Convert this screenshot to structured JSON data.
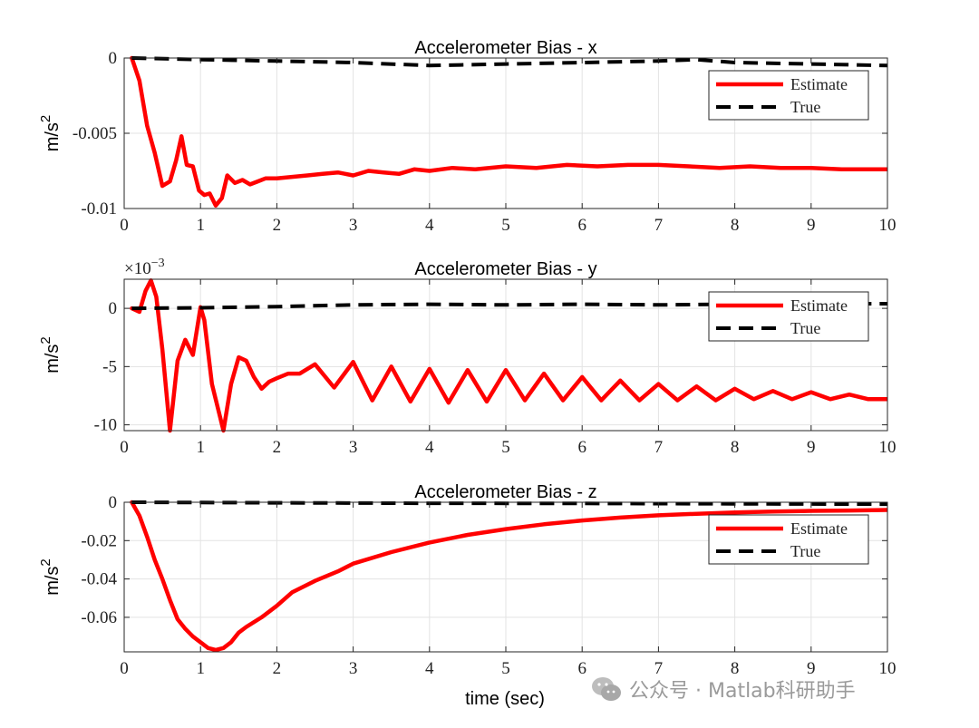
{
  "figure": {
    "xlabel": "time (sec)",
    "watermark": "公众号 · Matlab科研助手"
  },
  "chart_data": [
    {
      "type": "line",
      "title": "Accelerometer Bias - x",
      "xlabel": "",
      "ylabel": "m/s",
      "ylabel_superscript": "2",
      "xlim": [
        0,
        10
      ],
      "ylim": [
        -0.01,
        0
      ],
      "xticks": [
        0,
        1,
        2,
        3,
        4,
        5,
        6,
        7,
        8,
        9,
        10
      ],
      "yticks": [
        0,
        -0.005,
        -0.01
      ],
      "ytick_labels": [
        "0",
        "-0.005",
        "-0.01"
      ],
      "grid": true,
      "legend": {
        "position": "top-right",
        "entries": [
          "Estimate",
          "True"
        ]
      },
      "series": [
        {
          "name": "Estimate",
          "color": "#ff0000",
          "style": "solid",
          "x": [
            0.1,
            0.2,
            0.3,
            0.4,
            0.5,
            0.6,
            0.68,
            0.75,
            0.82,
            0.9,
            0.98,
            1.05,
            1.12,
            1.2,
            1.28,
            1.35,
            1.45,
            1.55,
            1.65,
            1.75,
            1.85,
            2.0,
            2.2,
            2.4,
            2.6,
            2.8,
            3.0,
            3.2,
            3.4,
            3.6,
            3.8,
            4.0,
            4.3,
            4.6,
            5.0,
            5.4,
            5.8,
            6.2,
            6.6,
            7.0,
            7.4,
            7.8,
            8.2,
            8.6,
            9.0,
            9.4,
            9.7,
            10.0
          ],
          "y": [
            0.0,
            -0.0015,
            -0.0045,
            -0.0063,
            -0.0085,
            -0.0082,
            -0.0068,
            -0.0052,
            -0.0071,
            -0.0072,
            -0.0088,
            -0.0091,
            -0.009,
            -0.0098,
            -0.0093,
            -0.0078,
            -0.0083,
            -0.0081,
            -0.0084,
            -0.0082,
            -0.008,
            -0.008,
            -0.0079,
            -0.0078,
            -0.0077,
            -0.0076,
            -0.0078,
            -0.0075,
            -0.0076,
            -0.0077,
            -0.0074,
            -0.0075,
            -0.0073,
            -0.0074,
            -0.0072,
            -0.0073,
            -0.0071,
            -0.0072,
            -0.0071,
            -0.0071,
            -0.0072,
            -0.0073,
            -0.0072,
            -0.0073,
            -0.0073,
            -0.0074,
            -0.0074,
            -0.0074
          ]
        },
        {
          "name": "True",
          "color": "#000000",
          "style": "dashed",
          "x": [
            0.1,
            1.0,
            2.0,
            3.0,
            4.0,
            5.0,
            6.0,
            7.0,
            7.5,
            8.0,
            9.0,
            10.0
          ],
          "y": [
            0.0,
            -0.0001,
            -0.0002,
            -0.0003,
            -0.0005,
            -0.0004,
            -0.0003,
            -0.0002,
            -0.0001,
            -0.0003,
            -0.0004,
            -0.0005
          ]
        }
      ]
    },
    {
      "type": "line",
      "title": "Accelerometer Bias - y",
      "xlabel": "",
      "ylabel": "m/s",
      "ylabel_superscript": "2",
      "y_multiplier": "×10",
      "y_multiplier_exp": "−3",
      "xlim": [
        0,
        10
      ],
      "ylim": [
        -10.5,
        2.5
      ],
      "xticks": [
        0,
        1,
        2,
        3,
        4,
        5,
        6,
        7,
        8,
        9,
        10
      ],
      "yticks": [
        0,
        -5,
        -10
      ],
      "ytick_labels": [
        "0",
        "-5",
        "-10"
      ],
      "grid": true,
      "legend": {
        "position": "top-right",
        "entries": [
          "Estimate",
          "True"
        ]
      },
      "series": [
        {
          "name": "Estimate",
          "color": "#ff0000",
          "style": "solid",
          "x": [
            0.1,
            0.2,
            0.28,
            0.35,
            0.42,
            0.5,
            0.6,
            0.7,
            0.8,
            0.9,
            1.0,
            1.05,
            1.15,
            1.3,
            1.4,
            1.5,
            1.6,
            1.7,
            1.8,
            1.9,
            2.0,
            2.15,
            2.3,
            2.5,
            2.75,
            3.0,
            3.25,
            3.5,
            3.75,
            4.0,
            4.25,
            4.5,
            4.75,
            5.0,
            5.25,
            5.5,
            5.75,
            6.0,
            6.25,
            6.5,
            6.75,
            7.0,
            7.25,
            7.5,
            7.75,
            8.0,
            8.25,
            8.5,
            8.75,
            9.0,
            9.25,
            9.5,
            9.75,
            10.0
          ],
          "y": [
            0.0,
            -0.3,
            1.5,
            2.4,
            1.0,
            -3.5,
            -10.5,
            -4.5,
            -2.7,
            -4.0,
            0.1,
            -1.0,
            -6.5,
            -10.5,
            -6.5,
            -4.2,
            -4.5,
            -5.9,
            -6.9,
            -6.3,
            -6.0,
            -5.6,
            -5.6,
            -4.8,
            -6.8,
            -4.6,
            -7.9,
            -5.0,
            -8.0,
            -5.2,
            -8.1,
            -5.3,
            -8.0,
            -5.3,
            -7.9,
            -5.6,
            -7.9,
            -5.9,
            -7.9,
            -6.2,
            -7.9,
            -6.5,
            -7.9,
            -6.7,
            -7.9,
            -6.9,
            -7.8,
            -7.1,
            -7.8,
            -7.2,
            -7.8,
            -7.4,
            -7.8,
            -7.8
          ]
        },
        {
          "name": "True",
          "color": "#000000",
          "style": "dashed",
          "x": [
            0.1,
            1.0,
            2.0,
            3.0,
            4.0,
            5.0,
            6.0,
            7.0,
            8.0,
            9.0,
            10.0
          ],
          "y": [
            0.0,
            0.05,
            0.15,
            0.3,
            0.35,
            0.3,
            0.35,
            0.3,
            0.35,
            0.4,
            0.4
          ]
        }
      ]
    },
    {
      "type": "line",
      "title": "Accelerometer Bias - z",
      "xlabel": "time (sec)",
      "ylabel": "m/s",
      "ylabel_superscript": "2",
      "xlim": [
        0,
        10
      ],
      "ylim": [
        -0.078,
        0
      ],
      "xticks": [
        0,
        1,
        2,
        3,
        4,
        5,
        6,
        7,
        8,
        9,
        10
      ],
      "yticks": [
        0,
        -0.02,
        -0.04,
        -0.06
      ],
      "ytick_labels": [
        "0",
        "-0.02",
        "-0.04",
        "-0.06"
      ],
      "grid": true,
      "legend": {
        "position": "top-right",
        "entries": [
          "Estimate",
          "True"
        ]
      },
      "series": [
        {
          "name": "Estimate",
          "color": "#ff0000",
          "style": "solid",
          "x": [
            0.1,
            0.2,
            0.3,
            0.4,
            0.5,
            0.6,
            0.7,
            0.8,
            0.9,
            1.0,
            1.1,
            1.2,
            1.3,
            1.4,
            1.5,
            1.6,
            1.8,
            2.0,
            2.2,
            2.5,
            2.8,
            3.0,
            3.5,
            4.0,
            4.5,
            5.0,
            5.5,
            6.0,
            6.5,
            7.0,
            7.5,
            8.0,
            8.5,
            9.0,
            9.5,
            10.0
          ],
          "y": [
            0.0,
            -0.007,
            -0.018,
            -0.03,
            -0.04,
            -0.051,
            -0.061,
            -0.066,
            -0.07,
            -0.073,
            -0.076,
            -0.077,
            -0.076,
            -0.073,
            -0.068,
            -0.065,
            -0.06,
            -0.054,
            -0.047,
            -0.041,
            -0.036,
            -0.032,
            -0.026,
            -0.021,
            -0.017,
            -0.014,
            -0.0115,
            -0.0095,
            -0.008,
            -0.0068,
            -0.006,
            -0.0053,
            -0.0048,
            -0.0045,
            -0.0043,
            -0.004
          ]
        },
        {
          "name": "True",
          "color": "#000000",
          "style": "dashed",
          "x": [
            0.1,
            2.0,
            4.0,
            6.0,
            8.0,
            10.0
          ],
          "y": [
            0.0,
            -0.0003,
            -0.0005,
            -0.0006,
            -0.0008,
            -0.001
          ]
        }
      ]
    }
  ]
}
